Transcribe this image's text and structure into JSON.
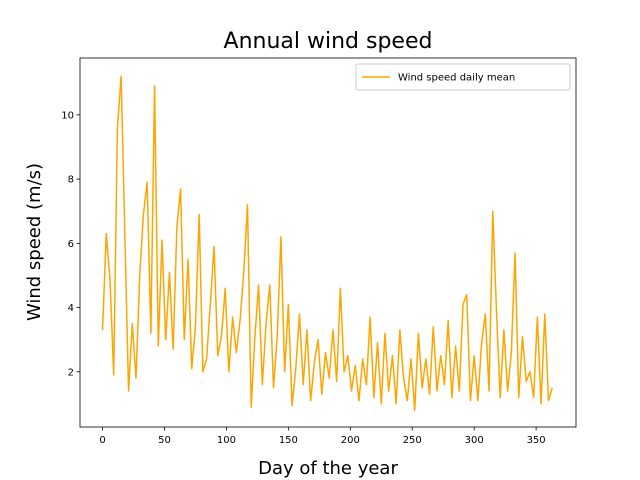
{
  "chart_data": {
    "type": "line",
    "title": "Annual wind speed",
    "x_label": "Day of the year",
    "y_label": "Wind speed (m/s)",
    "x": [
      0,
      3,
      6,
      9,
      12,
      15,
      18,
      21,
      24,
      27,
      30,
      33,
      36,
      39,
      42,
      45,
      48,
      51,
      54,
      57,
      60,
      63,
      66,
      69,
      72,
      75,
      78,
      81,
      84,
      87,
      90,
      93,
      96,
      99,
      102,
      105,
      108,
      111,
      114,
      117,
      120,
      123,
      126,
      129,
      132,
      135,
      138,
      141,
      144,
      147,
      150,
      153,
      156,
      159,
      162,
      165,
      168,
      171,
      174,
      177,
      180,
      183,
      186,
      189,
      192,
      195,
      198,
      201,
      204,
      207,
      210,
      213,
      216,
      219,
      222,
      225,
      228,
      231,
      234,
      237,
      240,
      243,
      246,
      249,
      252,
      255,
      258,
      261,
      264,
      267,
      270,
      273,
      276,
      279,
      282,
      285,
      288,
      291,
      294,
      297,
      300,
      303,
      306,
      309,
      312,
      315,
      318,
      321,
      324,
      327,
      330,
      333,
      336,
      339,
      342,
      345,
      348,
      351,
      354,
      357,
      360,
      363
    ],
    "series": [
      {
        "name": "Wind speed daily mean",
        "color": "#ffa500",
        "values": [
          3.3,
          6.3,
          4.9,
          1.9,
          9.6,
          11.2,
          6.3,
          1.4,
          3.5,
          1.8,
          5.0,
          6.9,
          7.9,
          3.2,
          10.9,
          2.8,
          6.1,
          3.0,
          5.1,
          2.7,
          6.5,
          7.7,
          3.0,
          5.5,
          2.1,
          3.4,
          6.9,
          2.0,
          2.4,
          4.1,
          5.9,
          2.5,
          3.1,
          4.6,
          2.0,
          3.7,
          2.6,
          3.6,
          5.1,
          7.2,
          0.9,
          3.1,
          4.7,
          1.6,
          3.5,
          4.7,
          1.5,
          3.1,
          6.2,
          2.0,
          4.1,
          0.95,
          2.1,
          3.8,
          1.6,
          3.3,
          1.1,
          2.3,
          3.0,
          1.3,
          2.6,
          1.8,
          3.3,
          1.7,
          4.6,
          2.0,
          2.5,
          1.4,
          2.2,
          1.1,
          2.4,
          1.6,
          3.7,
          1.2,
          2.9,
          1.0,
          3.2,
          1.4,
          2.5,
          1.0,
          3.3,
          1.8,
          1.1,
          2.4,
          0.8,
          3.2,
          1.5,
          2.4,
          1.3,
          3.4,
          1.4,
          2.5,
          1.6,
          3.6,
          1.2,
          2.8,
          1.4,
          4.1,
          4.4,
          1.1,
          2.5,
          1.1,
          2.9,
          3.8,
          1.4,
          7.0,
          3.9,
          1.2,
          3.3,
          1.4,
          2.6,
          5.7,
          1.2,
          3.1,
          1.7,
          2.0,
          1.2,
          3.7,
          1.0,
          3.8,
          1.1,
          1.5
        ]
      }
    ],
    "xlim": [
      -18.2,
      382.2
    ],
    "xticks": [
      0,
      50,
      100,
      150,
      200,
      250,
      300,
      350
    ],
    "ylim": [
      0.28,
      11.77
    ],
    "yticks": [
      2,
      4,
      6,
      8,
      10
    ],
    "legend": "upper right"
  }
}
